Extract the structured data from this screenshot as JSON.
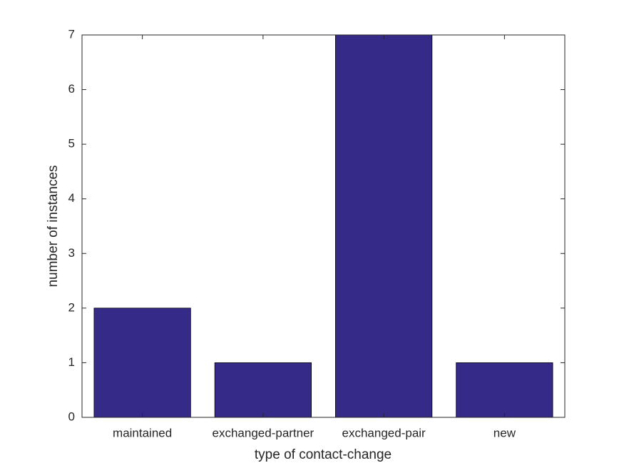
{
  "chart_data": {
    "type": "bar",
    "x_label": "type of contact-change",
    "y_label": "number of instances",
    "categories": [
      "maintained",
      "exchanged-partner",
      "exchanged-pair",
      "new"
    ],
    "values": [
      2,
      1,
      7,
      1
    ],
    "color": "#352a87",
    "ylim": [
      0,
      7
    ],
    "yticks": [
      0,
      1,
      2,
      3,
      4,
      5,
      6,
      7
    ],
    "grid": false
  }
}
